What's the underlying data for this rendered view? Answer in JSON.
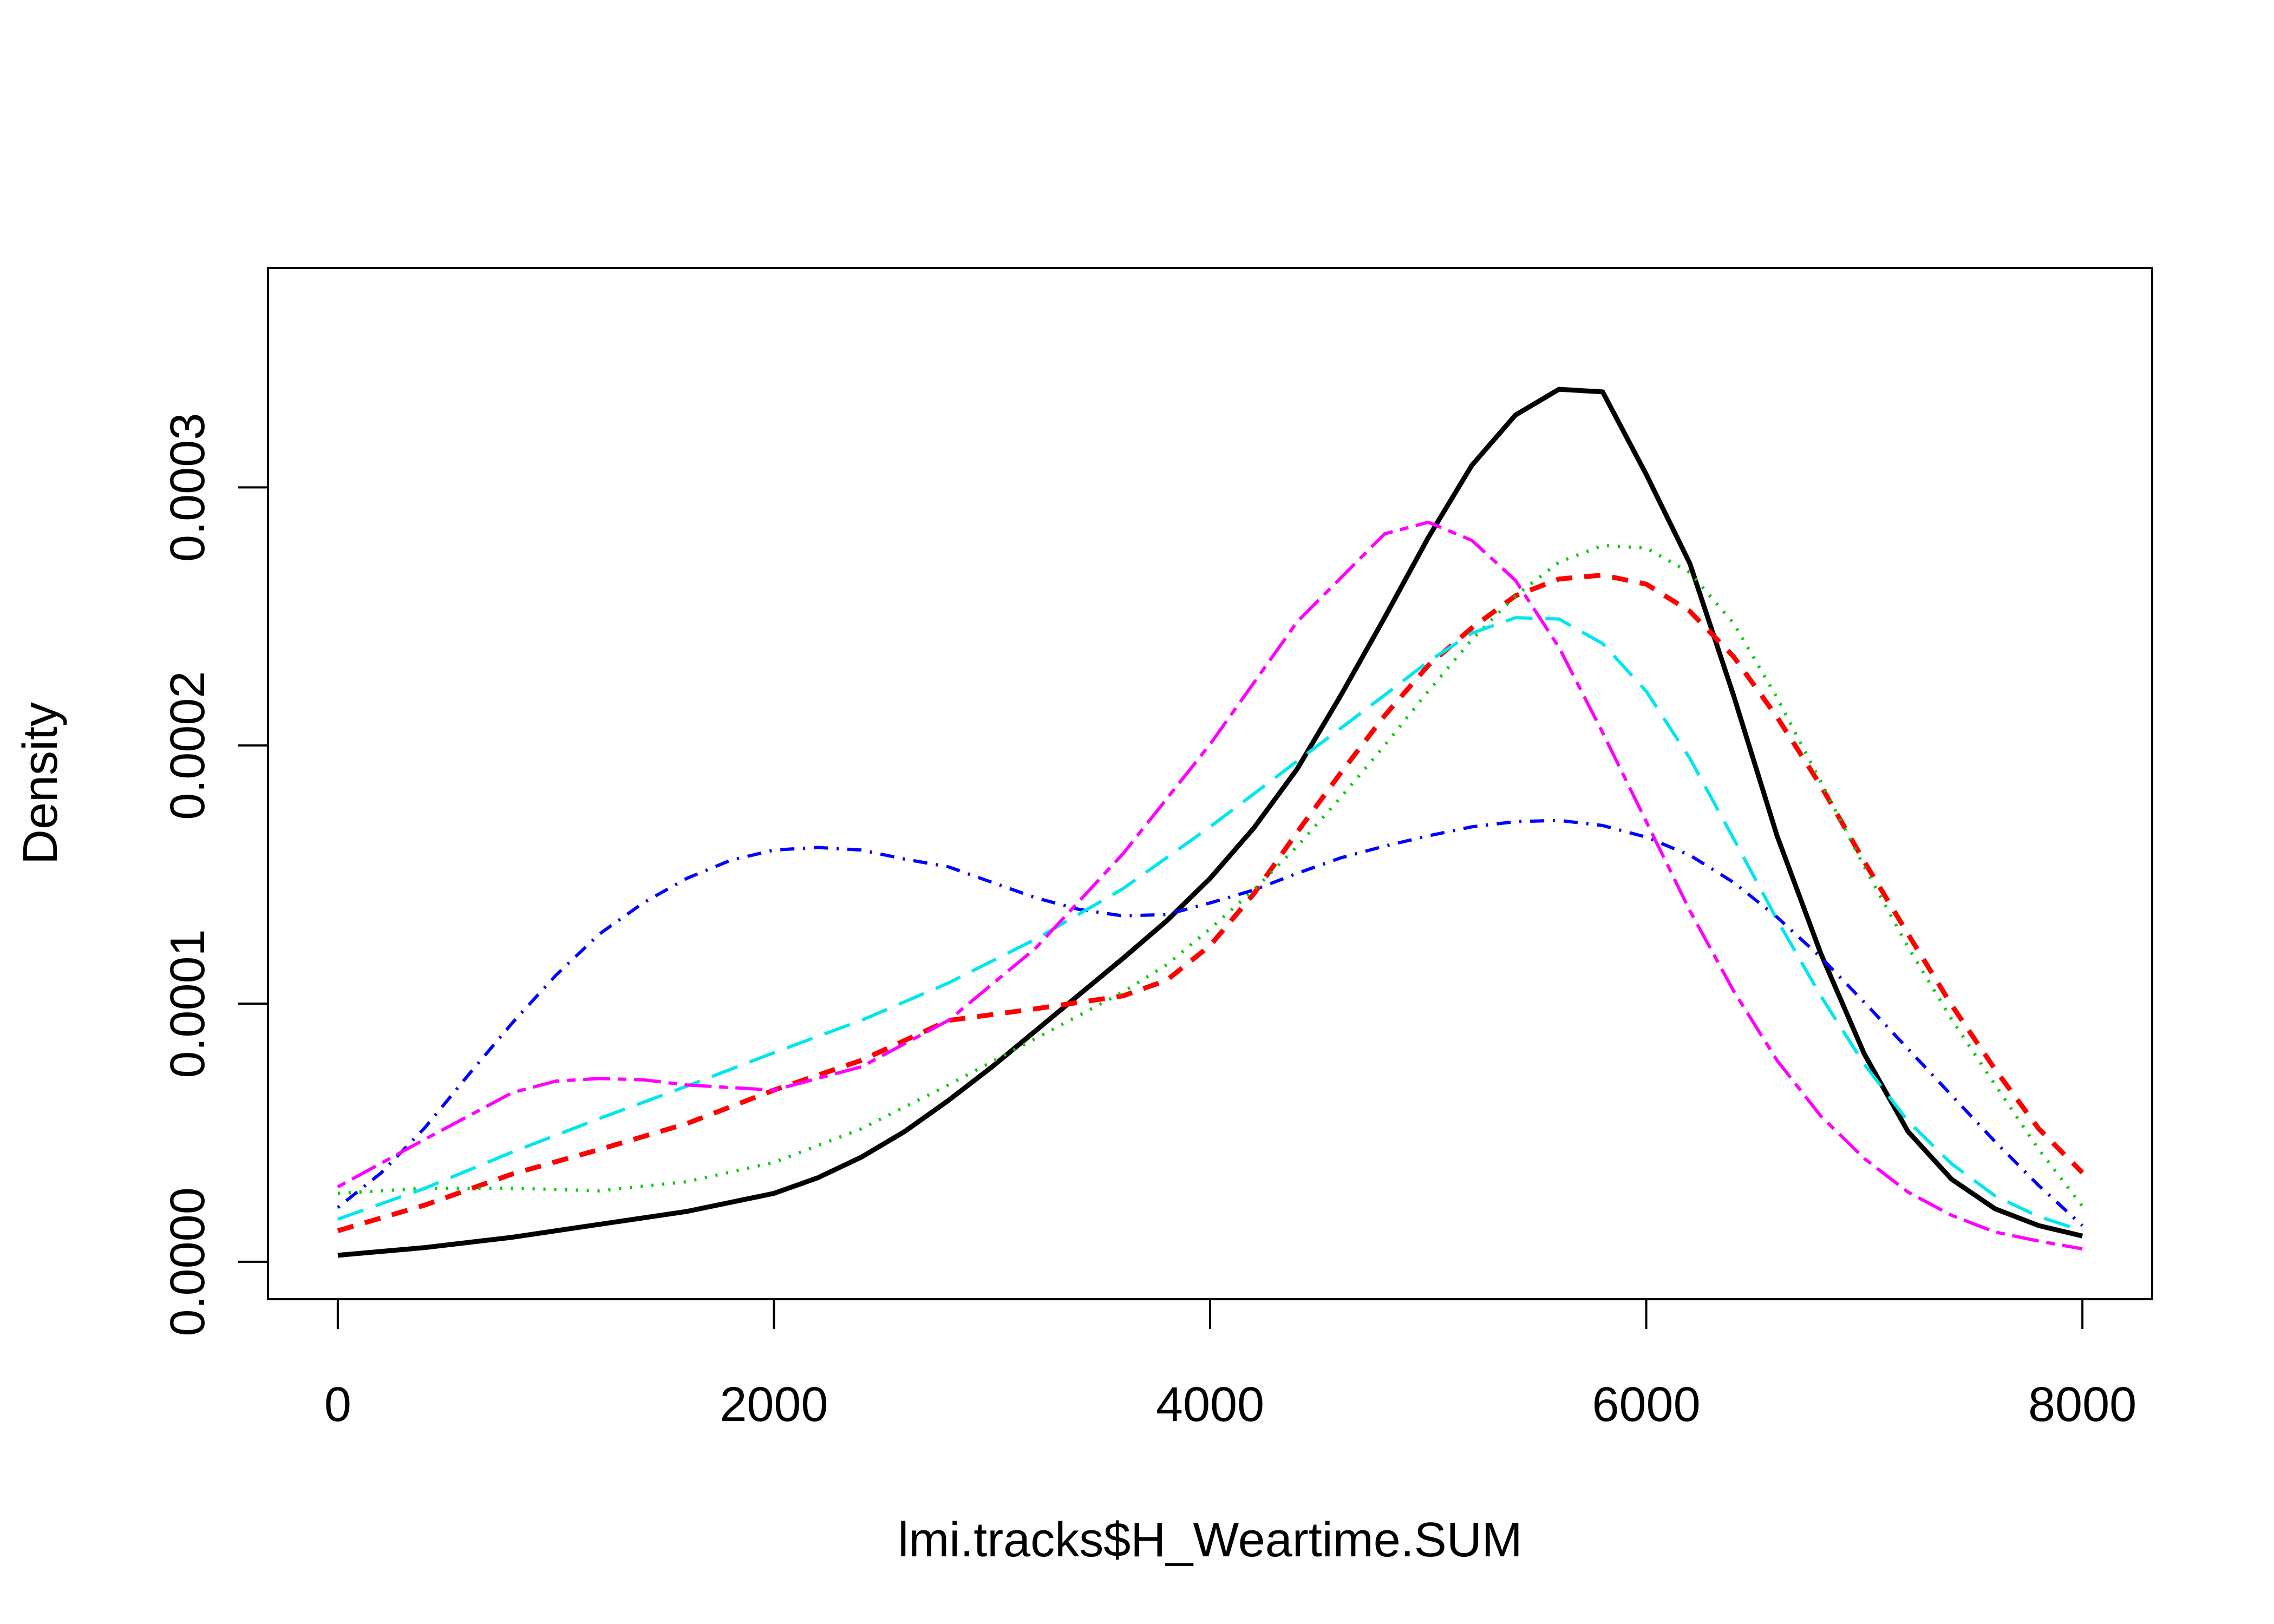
{
  "chart_data": {
    "type": "line",
    "title": "",
    "xlabel": "lmi.tracks$H_Weartime.SUM",
    "ylabel": "Density",
    "xlim": [
      -320,
      8320
    ],
    "ylim": [
      -1.45e-05,
      0.000385
    ],
    "x_ticks": [
      0,
      2000,
      4000,
      6000,
      8000
    ],
    "x_tick_labels": [
      "0",
      "2000",
      "4000",
      "6000",
      "8000"
    ],
    "y_ticks": [
      0,
      0.0001,
      0.0002,
      0.0003
    ],
    "y_tick_labels": [
      "0.0000",
      "0.0001",
      "0.0002",
      "0.0003"
    ],
    "grid": false,
    "legend": "none",
    "series": [
      {
        "color": "#000000",
        "line_style": "solid",
        "line_width": 3,
        "x": [
          0,
          400,
          800,
          1200,
          1600,
          2000,
          2200,
          2400,
          2600,
          2800,
          3000,
          3200,
          3400,
          3600,
          3800,
          4000,
          4200,
          4400,
          4600,
          4800,
          5000,
          5200,
          5400,
          5600,
          5800,
          6000,
          6200,
          6400,
          6600,
          6800,
          7000,
          7200,
          7400,
          7600,
          7800,
          8000
        ],
        "y": [
          2.5e-06,
          5.5e-06,
          9.5e-06,
          1.45e-05,
          1.95e-05,
          2.65e-05,
          3.25e-05,
          4.05e-05,
          5.05e-05,
          6.25e-05,
          7.55e-05,
          8.95e-05,
          0.0001035,
          0.0001175,
          0.000132,
          0.0001485,
          0.000168,
          0.000191,
          0.0002195,
          0.0002495,
          0.0002805,
          0.0003085,
          0.000328,
          0.000338,
          0.000337,
          0.000305,
          0.0002705,
          0.0002195,
          0.000165,
          0.0001195,
          8.05e-05,
          5.05e-05,
          3.2e-05,
          2.05e-05,
          1.4e-05,
          1e-05
        ]
      },
      {
        "color": "#ff0000",
        "line_style": "dashed",
        "line_width": 3,
        "x": [
          0,
          400,
          800,
          1200,
          1600,
          2000,
          2400,
          2800,
          3200,
          3600,
          3800,
          4000,
          4200,
          4400,
          4600,
          4800,
          5000,
          5200,
          5400,
          5600,
          5800,
          6000,
          6200,
          6400,
          6600,
          6800,
          7000,
          7200,
          7400,
          7600,
          7800,
          8000
        ],
        "y": [
          1.2e-05,
          2.2e-05,
          3.4e-05,
          4.35e-05,
          5.35e-05,
          6.65e-05,
          7.8e-05,
          9.35e-05,
          9.8e-05,
          0.000103,
          0.000109,
          0.0001225,
          0.0001425,
          0.0001665,
          0.0001895,
          0.0002115,
          0.000231,
          0.0002455,
          0.000258,
          0.0002645,
          0.000266,
          0.0002625,
          0.000252,
          0.0002345,
          0.000211,
          0.0001845,
          0.000155,
          0.000127,
          9.95e-05,
          7.45e-05,
          5.15e-05,
          3.45e-05
        ]
      },
      {
        "color": "#00cd00",
        "line_style": "dotted",
        "line_width": 2,
        "x": [
          0,
          400,
          800,
          1200,
          1600,
          2000,
          2400,
          2800,
          3200,
          3600,
          3800,
          4000,
          4200,
          4400,
          4600,
          4800,
          5000,
          5200,
          5400,
          5600,
          5800,
          6000,
          6200,
          6400,
          6600,
          6800,
          7000,
          7200,
          7400,
          7600,
          7800,
          8000
        ],
        "y": [
          2.65e-05,
          2.85e-05,
          2.85e-05,
          2.75e-05,
          3.1e-05,
          3.85e-05,
          5.15e-05,
          6.85e-05,
          8.65e-05,
          0.0001045,
          0.000115,
          0.000129,
          0.000144,
          0.000161,
          0.00018,
          0.0002,
          0.000221,
          0.000241,
          0.000258,
          0.000271,
          0.0002775,
          0.0002765,
          0.000267,
          0.0002475,
          0.0002185,
          0.000186,
          0.000153,
          0.000122,
          9.4e-05,
          6.85e-05,
          4.35e-05,
          2.15e-05
        ]
      },
      {
        "color": "#0000ff",
        "line_style": "dotdash",
        "line_width": 2,
        "x": [
          0,
          200,
          400,
          600,
          800,
          1000,
          1200,
          1400,
          1600,
          1800,
          2000,
          2200,
          2400,
          2600,
          2800,
          3000,
          3200,
          3400,
          3600,
          3800,
          4000,
          4200,
          4400,
          4600,
          4800,
          5000,
          5200,
          5400,
          5600,
          5800,
          6000,
          6200,
          6400,
          6600,
          6800,
          7000,
          7200,
          7400,
          7600,
          7800,
          8000
        ],
        "y": [
          2.1e-05,
          3.45e-05,
          5.2e-05,
          7.25e-05,
          9.25e-05,
          0.000111,
          0.000127,
          0.000139,
          0.0001485,
          0.0001555,
          0.0001595,
          0.0001605,
          0.0001595,
          0.000156,
          0.000153,
          0.000147,
          0.000141,
          0.0001365,
          0.000134,
          0.0001345,
          0.000139,
          0.000144,
          0.0001505,
          0.0001565,
          0.000161,
          0.000165,
          0.0001685,
          0.0001705,
          0.000171,
          0.000169,
          0.0001645,
          0.0001575,
          0.000147,
          0.0001335,
          0.000118,
          0.0001005,
          8.25e-05,
          6.45e-05,
          4.65e-05,
          2.95e-05,
          1.4e-05
        ]
      },
      {
        "color": "#00e5ee",
        "line_style": "longdash",
        "line_width": 2,
        "x": [
          0,
          400,
          800,
          1200,
          1600,
          2000,
          2400,
          2800,
          3200,
          3600,
          4000,
          4400,
          4800,
          5000,
          5200,
          5400,
          5600,
          5800,
          6000,
          6200,
          6400,
          6600,
          6800,
          7000,
          7200,
          7400,
          7600,
          7800,
          8000
        ],
        "y": [
          1.65e-05,
          2.85e-05,
          4.25e-05,
          5.55e-05,
          6.8e-05,
          8.1e-05,
          9.35e-05,
          0.000108,
          0.000125,
          0.0001445,
          0.0001685,
          0.000194,
          0.0002195,
          0.0002325,
          0.0002435,
          0.0002495,
          0.000249,
          0.0002395,
          0.000221,
          0.000195,
          0.000164,
          0.0001325,
          0.000103,
          7.65e-05,
          5.45e-05,
          3.8e-05,
          2.55e-05,
          1.75e-05,
          1.2e-05
        ]
      },
      {
        "color": "#ff00ff",
        "line_style": "twodash",
        "line_width": 2,
        "x": [
          0,
          400,
          800,
          1000,
          1200,
          1400,
          1600,
          2000,
          2400,
          2800,
          3200,
          3600,
          4000,
          4400,
          4800,
          5000,
          5200,
          5400,
          5600,
          5800,
          6000,
          6200,
          6400,
          6600,
          6800,
          7000,
          7200,
          7400,
          7600,
          7800,
          8000
        ],
        "y": [
          2.9e-05,
          4.75e-05,
          6.55e-05,
          7e-05,
          7.1e-05,
          7.05e-05,
          6.85e-05,
          6.65e-05,
          7.55e-05,
          9.35e-05,
          0.0001215,
          0.000158,
          0.0002005,
          0.000248,
          0.000282,
          0.0002865,
          0.0002795,
          0.000264,
          0.000238,
          0.000205,
          0.0001705,
          0.000136,
          0.000105,
          7.8e-05,
          5.65e-05,
          4e-05,
          2.7e-05,
          1.8e-05,
          1.15e-05,
          8e-06,
          5e-06
        ]
      }
    ]
  }
}
